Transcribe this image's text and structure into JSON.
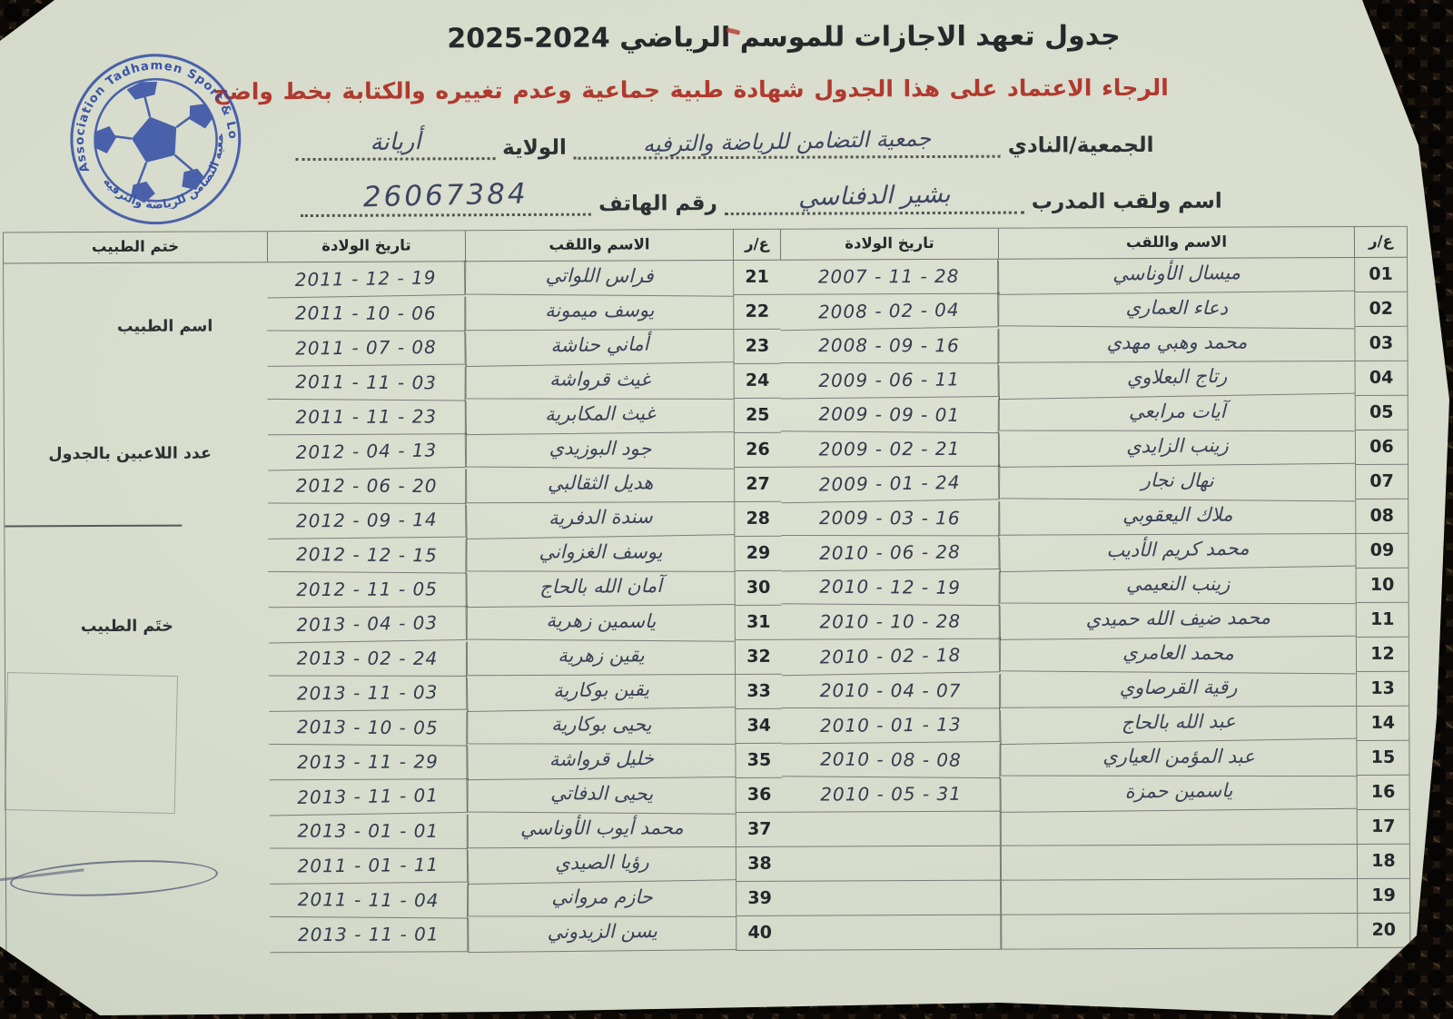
{
  "page": {
    "title_ar": "جدول تعهد الاجازات للموسم الرياضي",
    "season_display": "2025-2024",
    "instruction": "الرجاء الاعتماد على هذا الجدول شهادة طبية جماعية وعدم تغييره والكتابة بخط واضح",
    "club_label": "الجمعية/النادي",
    "club_value": "جمعية التضامن للرياضة والترفيه",
    "wilaya_label": "الولاية",
    "wilaya_value": "أريانة",
    "coach_label": "اسم ولقب المدرب",
    "coach_value": "بشير الدفناسي",
    "phone_label": "رقم الهاتف",
    "phone_value": "26067384"
  },
  "logo": {
    "text_top": "Association Tadhamen Sport & Loisirs",
    "text_bottom": "جمعية التضامن للرياضة والترفيه",
    "color": "#2d49a3"
  },
  "table": {
    "headers": {
      "num": "ع/ر",
      "name": "الاسم واللقب",
      "dob": "تاريخ الولادة",
      "stamp": "ختم الطبيب"
    },
    "side_labels": {
      "doctor_name": "اسم الطبيب",
      "players_count": "عدد اللاعبين بالجدول",
      "doctor_stamp": "ختَم الطبيب"
    },
    "rows_right": [
      {
        "num": "01",
        "name": "ميسال الأوناسي",
        "dob": "2007 - 11 - 28"
      },
      {
        "num": "02",
        "name": "دعاء العماري",
        "dob": "2008 - 02 - 04"
      },
      {
        "num": "03",
        "name": "محمد وهبي مهدي",
        "dob": "2008 - 09 - 16"
      },
      {
        "num": "04",
        "name": "رتاج البعلاوي",
        "dob": "2009 - 06 - 11"
      },
      {
        "num": "05",
        "name": "آيات مرابعي",
        "dob": "2009 - 09 - 01"
      },
      {
        "num": "06",
        "name": "زينب الزايدي",
        "dob": "2009 - 02 - 21"
      },
      {
        "num": "07",
        "name": "نهال نجار",
        "dob": "2009 - 01 - 24"
      },
      {
        "num": "08",
        "name": "ملاك اليعقوبي",
        "dob": "2009 - 03 - 16"
      },
      {
        "num": "09",
        "name": "محمد كريم الأديب",
        "dob": "2010 - 06 - 28"
      },
      {
        "num": "10",
        "name": "زينب النعيمي",
        "dob": "2010 - 12 - 19"
      },
      {
        "num": "11",
        "name": "محمد ضيف الله حميدي",
        "dob": "2010 - 10 - 28"
      },
      {
        "num": "12",
        "name": "محمد العامري",
        "dob": "2010 - 02 - 18"
      },
      {
        "num": "13",
        "name": "رقية القرصاوي",
        "dob": "2010 - 04 - 07"
      },
      {
        "num": "14",
        "name": "عبد الله بالحاج",
        "dob": "2010 - 01 - 13"
      },
      {
        "num": "15",
        "name": "عبد المؤمن العياري",
        "dob": "2010 - 08 - 08"
      },
      {
        "num": "16",
        "name": "ياسمين حمزة",
        "dob": "2010 - 05 - 31"
      },
      {
        "num": "17",
        "name": "",
        "dob": ""
      },
      {
        "num": "18",
        "name": "",
        "dob": ""
      },
      {
        "num": "19",
        "name": "",
        "dob": ""
      },
      {
        "num": "20",
        "name": "",
        "dob": ""
      }
    ],
    "rows_left": [
      {
        "num": "21",
        "name": "فراس اللواتي",
        "dob": "2011 - 12 - 19"
      },
      {
        "num": "22",
        "name": "يوسف ميمونة",
        "dob": "2011 - 10 - 06"
      },
      {
        "num": "23",
        "name": "أماني حناشة",
        "dob": "2011 - 07 - 08"
      },
      {
        "num": "24",
        "name": "غيث قرواشة",
        "dob": "2011 - 11 - 03"
      },
      {
        "num": "25",
        "name": "غيث المكابرية",
        "dob": "2011 - 11 - 23"
      },
      {
        "num": "26",
        "name": "جود البوزيدي",
        "dob": "2012 - 04 - 13"
      },
      {
        "num": "27",
        "name": "هديل الثقالبي",
        "dob": "2012 - 06 - 20"
      },
      {
        "num": "28",
        "name": "سندة الدفرية",
        "dob": "2012 - 09 - 14"
      },
      {
        "num": "29",
        "name": "يوسف الغزواني",
        "dob": "2012 - 12 - 15"
      },
      {
        "num": "30",
        "name": "آمان الله بالحاج",
        "dob": "2012 - 11 - 05"
      },
      {
        "num": "31",
        "name": "ياسمين زهرية",
        "dob": "2013 - 04 - 03"
      },
      {
        "num": "32",
        "name": "يقين زهرية",
        "dob": "2013 - 02 - 24"
      },
      {
        "num": "33",
        "name": "يقين بوكارية",
        "dob": "2013 - 11 - 03"
      },
      {
        "num": "34",
        "name": "يحيى بوكارية",
        "dob": "2013 - 10 - 05"
      },
      {
        "num": "35",
        "name": "خليل قرواشة",
        "dob": "2013 - 11 - 29"
      },
      {
        "num": "36",
        "name": "يحيى الدفاتي",
        "dob": "2013 - 11 - 01"
      },
      {
        "num": "37",
        "name": "محمد أيوب الأوناسي",
        "dob": "2013 - 01 - 01"
      },
      {
        "num": "38",
        "name": "رؤيا الصيدي",
        "dob": "2011 - 01 - 11"
      },
      {
        "num": "39",
        "name": "حازم مرواني",
        "dob": "2011 - 11 - 04"
      },
      {
        "num": "40",
        "name": "يسن الزيدوني",
        "dob": "2013 - 11 - 01"
      }
    ]
  }
}
